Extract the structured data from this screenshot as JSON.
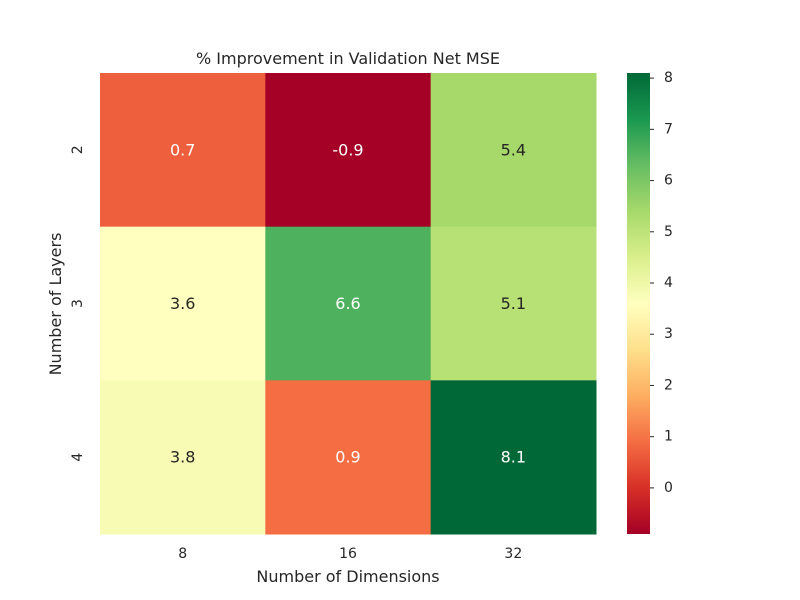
{
  "chart_data": {
    "type": "heatmap",
    "title": "% Improvement in Validation Net MSE",
    "xlabel": "Number of Dimensions",
    "ylabel": "Number of Layers",
    "x_categories": [
      "8",
      "16",
      "32"
    ],
    "y_categories": [
      "2",
      "3",
      "4"
    ],
    "values": [
      [
        0.7,
        -0.9,
        5.4
      ],
      [
        3.6,
        6.6,
        5.1
      ],
      [
        3.8,
        0.9,
        8.1
      ]
    ],
    "cell_labels": [
      [
        "0.7",
        "-0.9",
        "5.4"
      ],
      [
        "3.6",
        "6.6",
        "5.1"
      ],
      [
        "3.8",
        "0.9",
        "8.1"
      ]
    ],
    "colormap": "RdYlGn",
    "colorbar": {
      "min": -0.9,
      "max": 8.1,
      "ticks": [
        0,
        1,
        2,
        3,
        4,
        5,
        6,
        7,
        8
      ],
      "tick_labels": [
        "0",
        "1",
        "2",
        "3",
        "4",
        "5",
        "6",
        "7",
        "8"
      ]
    },
    "grid": false
  }
}
